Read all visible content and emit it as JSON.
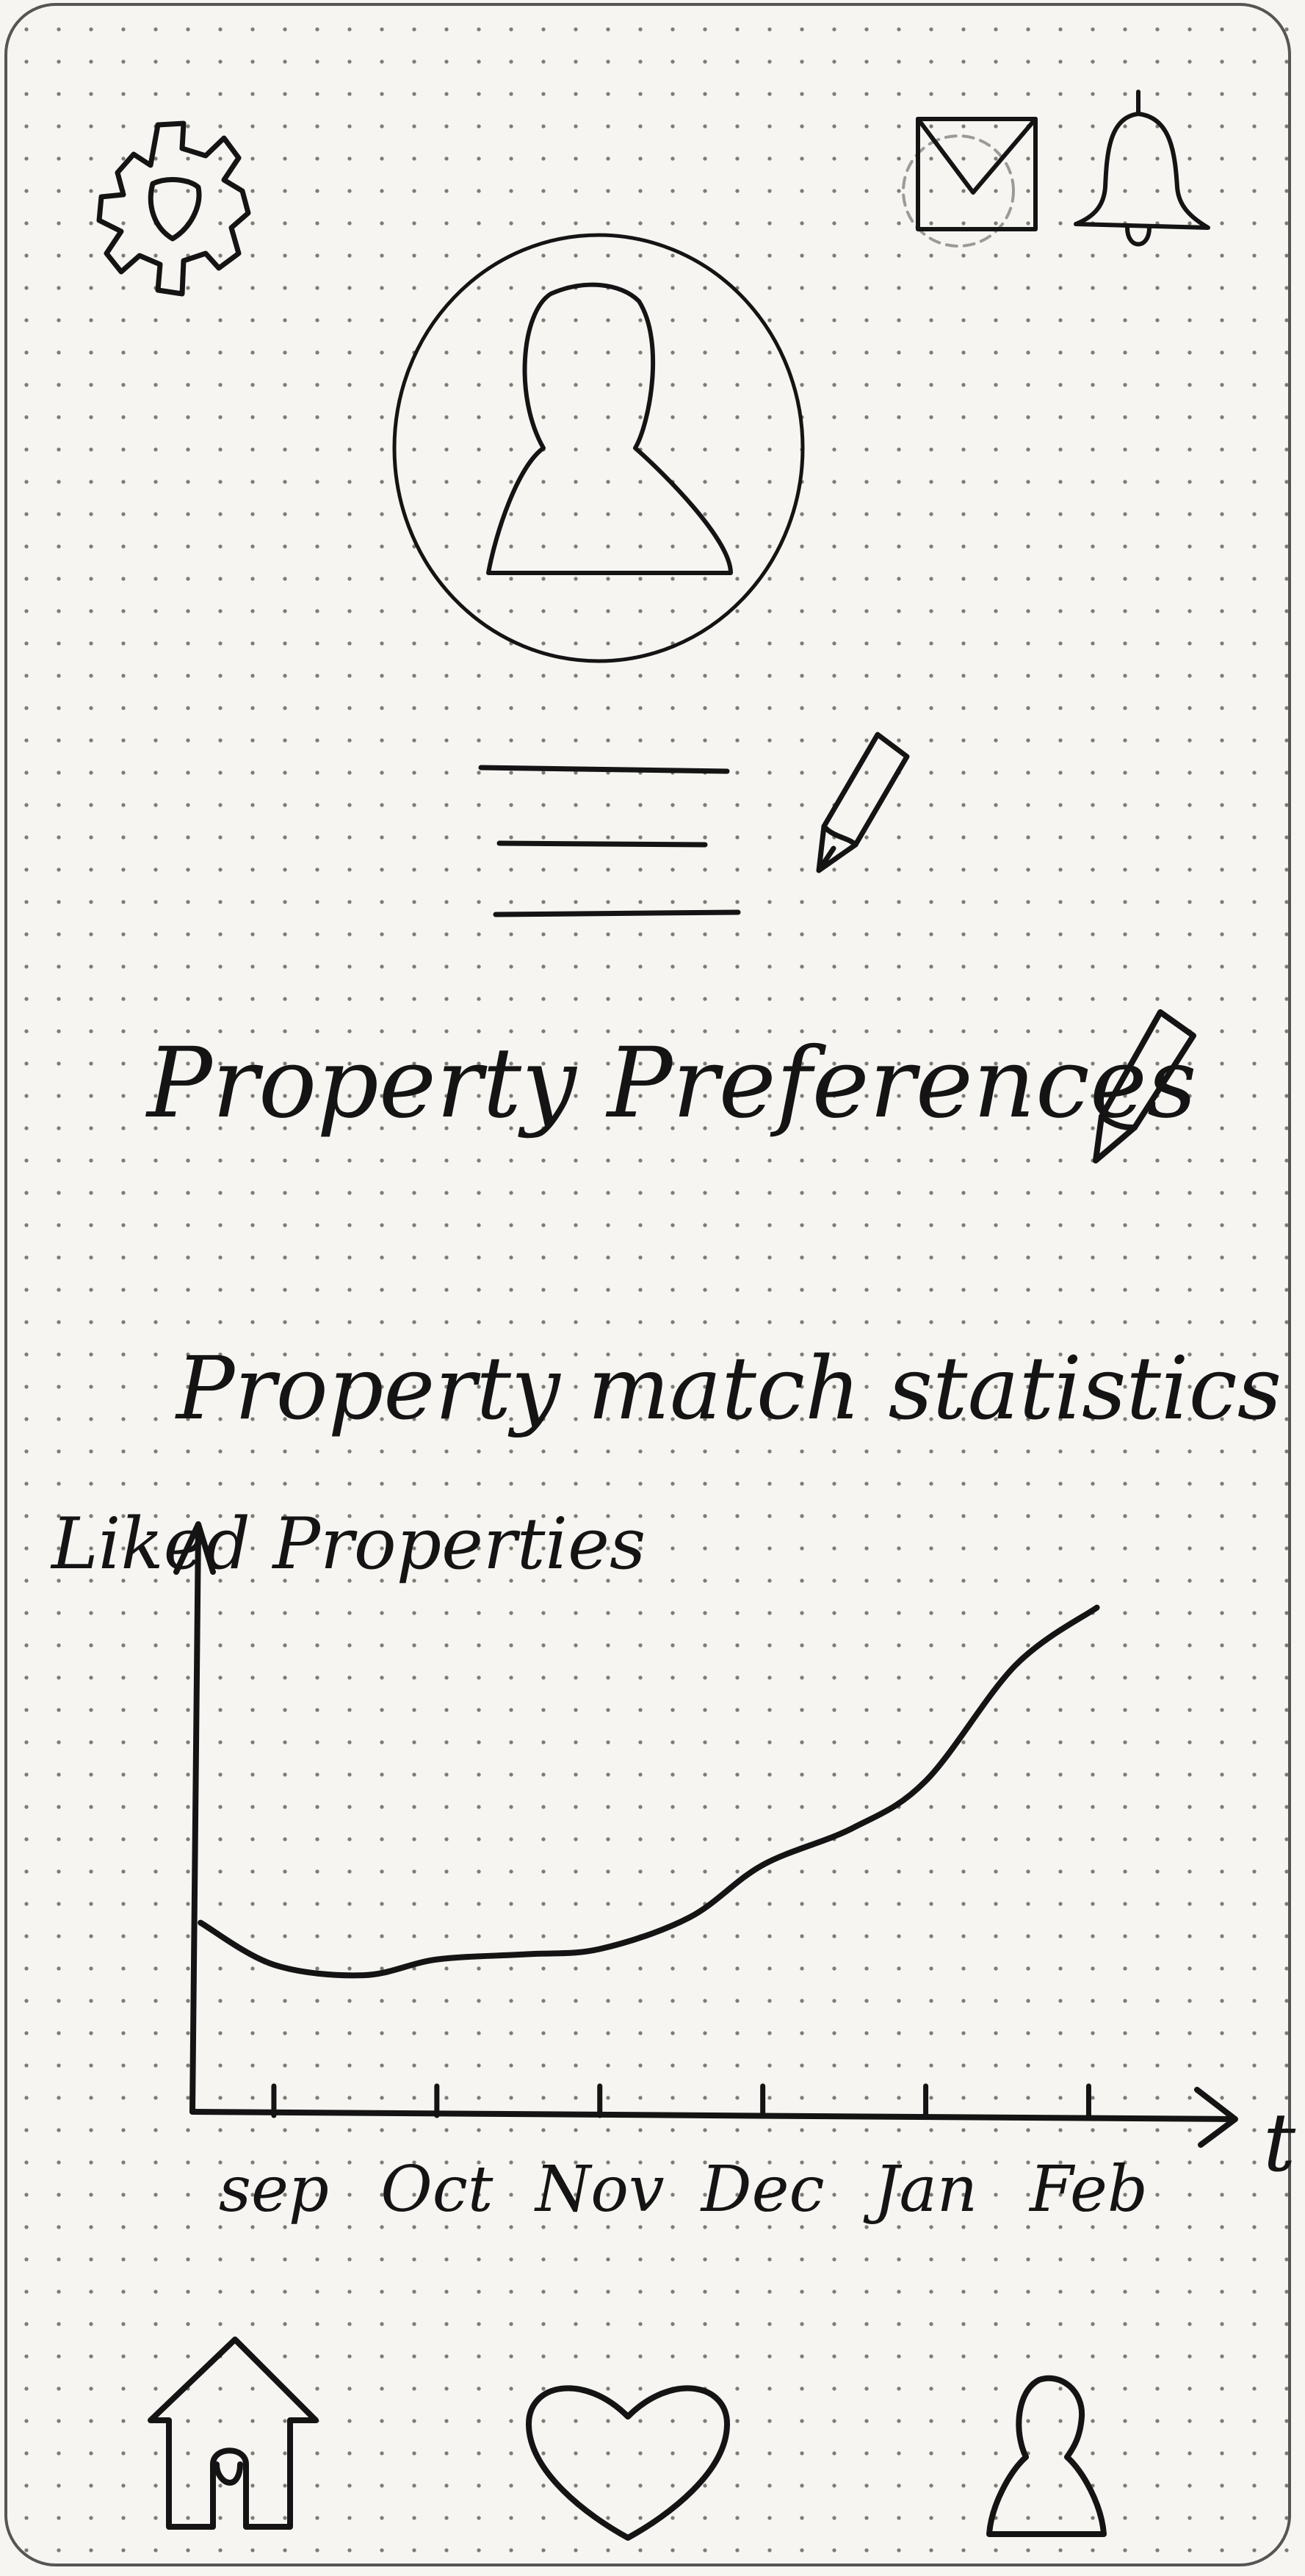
{
  "header": {
    "settings_icon": "gear-icon",
    "messages_icon": "envelope-icon",
    "notifications_icon": "bell-icon"
  },
  "profile": {
    "avatar_icon": "user-avatar-icon",
    "name_lines_placeholder": [
      "",
      "",
      ""
    ],
    "edit_icon": "pencil-icon"
  },
  "preferences": {
    "label": "Property Preferences",
    "edit_icon": "pencil-icon"
  },
  "stats": {
    "title": "Property match statistics"
  },
  "chart_data": {
    "type": "line",
    "title": "Property match statistics",
    "ylabel": "Liked Properties",
    "xlabel": "t",
    "categories": [
      "sep",
      "Oct",
      "Nov",
      "Dec",
      "Jan",
      "Feb"
    ],
    "x": [
      0.5,
      1.5,
      2.5,
      3.5,
      4.5,
      5.5
    ],
    "x_range": [
      0,
      6.3
    ],
    "ylim": [
      0,
      10
    ],
    "series": [
      {
        "x": [
          0.05,
          0.5,
          1.05,
          1.5,
          2.05,
          2.5,
          3.05,
          3.5,
          4.05,
          4.5,
          5.05,
          5.55
        ],
        "values": [
          3.6,
          2.8,
          2.6,
          2.9,
          3.0,
          3.1,
          3.7,
          4.7,
          5.4,
          6.3,
          8.5,
          9.6
        ]
      }
    ],
    "grid": false,
    "legend": "none"
  },
  "bottom_nav": {
    "home_icon": "home-icon",
    "favorites_icon": "heart-icon",
    "profile_icon": "user-icon"
  },
  "colors": {
    "ink": "#141414",
    "paper": "#f6f5f1",
    "dots": "#7d7b75"
  }
}
